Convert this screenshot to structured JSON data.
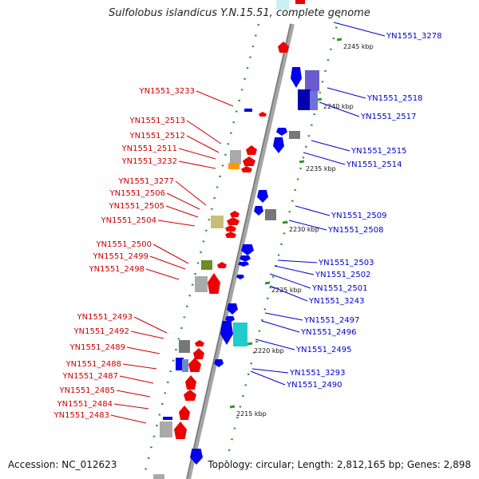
{
  "title": "Sulfolobus islandicus Y.N.15.51, complete genome",
  "footer": {
    "accession": "Accession: NC_012623",
    "topology": "Topology: circular; Length: 2,812,165 bp; Genes: 2,898"
  },
  "colors": {
    "minus_strand_label": "#cc0000",
    "plus_strand_label": "#0000cc",
    "backbone": "#888888",
    "tick": "#2a9a2a"
  },
  "scale_ticks": [
    "2245 kbp",
    "2240 kbp",
    "2235 kbp",
    "2230 kbp",
    "2225 kbp",
    "2220 kbp",
    "2215 kbp"
  ],
  "left_labels": [
    "YN1551_3233",
    "YN1551_2513",
    "YN1551_2512",
    "YN1551_2511",
    "YN1551_3232",
    "YN1551_3277",
    "YN1551_2506",
    "YN1551_2505",
    "YN1551_2504",
    "YN1551_2500",
    "YN1551_2499",
    "YN1551_2498",
    "YN1551_2493",
    "YN1551_2492",
    "YN1551_2489",
    "YN1551_2488",
    "YN1551_2487",
    "YN1551_2485",
    "YN1551_2484",
    "YN1551_2483"
  ],
  "right_labels": [
    "YN1551_3278",
    "YN1551_2518",
    "YN1551_2517",
    "YN1551_2515",
    "YN1551_2514",
    "YN1551_2509",
    "YN1551_2508",
    "YN1551_2503",
    "YN1551_2502",
    "YN1551_2501",
    "YN1551_3243",
    "YN1551_2497",
    "YN1551_2496",
    "YN1551_2495",
    "YN1551_3293",
    "YN1551_2490"
  ]
}
